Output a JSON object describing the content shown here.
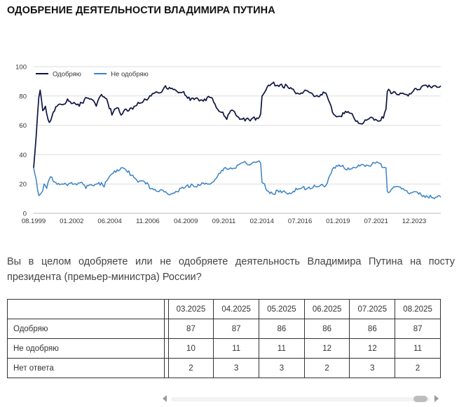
{
  "page": {
    "title": "ОДОБРЕНИЕ ДЕЯТЕЛЬНОСТИ ВЛАДИМИРА ПУТИНА",
    "question": "Вы в целом одобряете или не одобряете деятельность Владимира Путина на посту президента (премьер-министра) России?"
  },
  "chart_data": {
    "type": "line",
    "title": "",
    "xlabel": "",
    "ylabel": "",
    "ylim": [
      0,
      100
    ],
    "yticks": [
      0,
      20,
      40,
      60,
      80,
      100
    ],
    "xlim": [
      "1999-08",
      "2025-08"
    ],
    "xtick_labels": [
      "08.1999",
      "01.2002",
      "06.2004",
      "11.2006",
      "04.2009",
      "09.2011",
      "02.2014",
      "07.2016",
      "01.2019",
      "07.2021",
      "12.2023"
    ],
    "grid": true,
    "legend_position": "top-left",
    "series": [
      {
        "name": "Одобряю",
        "color": "#0d1440",
        "points": [
          [
            "1999-08",
            31
          ],
          [
            "1999-10",
            53
          ],
          [
            "1999-12",
            79
          ],
          [
            "2000-01",
            84
          ],
          [
            "2000-03",
            70
          ],
          [
            "2000-05",
            73
          ],
          [
            "2000-08",
            62
          ],
          [
            "2000-10",
            66
          ],
          [
            "2001-02",
            73
          ],
          [
            "2001-06",
            74
          ],
          [
            "2001-10",
            78
          ],
          [
            "2002-02",
            75
          ],
          [
            "2002-07",
            73
          ],
          [
            "2002-12",
            79
          ],
          [
            "2003-04",
            78
          ],
          [
            "2003-08",
            73
          ],
          [
            "2003-12",
            81
          ],
          [
            "2004-04",
            78
          ],
          [
            "2004-08",
            67
          ],
          [
            "2004-12",
            72
          ],
          [
            "2005-03",
            67
          ],
          [
            "2005-06",
            71
          ],
          [
            "2005-12",
            71
          ],
          [
            "2006-05",
            75
          ],
          [
            "2006-09",
            78
          ],
          [
            "2007-02",
            80
          ],
          [
            "2007-08",
            82
          ],
          [
            "2008-01",
            87
          ],
          [
            "2008-05",
            85
          ],
          [
            "2008-10",
            83
          ],
          [
            "2009-03",
            83
          ],
          [
            "2009-08",
            77
          ],
          [
            "2010-02",
            78
          ],
          [
            "2010-07",
            78
          ],
          [
            "2010-12",
            79
          ],
          [
            "2011-04",
            72
          ],
          [
            "2011-09",
            69
          ],
          [
            "2011-12",
            64
          ],
          [
            "2012-03",
            70
          ],
          [
            "2012-08",
            66
          ],
          [
            "2013-01",
            65
          ],
          [
            "2013-06",
            63
          ],
          [
            "2013-11",
            65
          ],
          [
            "2014-02",
            68
          ],
          [
            "2014-03",
            80
          ],
          [
            "2014-06",
            84
          ],
          [
            "2014-10",
            88
          ],
          [
            "2015-06",
            88
          ],
          [
            "2015-12",
            85
          ],
          [
            "2016-06",
            82
          ],
          [
            "2016-12",
            84
          ],
          [
            "2017-06",
            81
          ],
          [
            "2017-12",
            81
          ],
          [
            "2018-04",
            82
          ],
          [
            "2018-06",
            77
          ],
          [
            "2018-09",
            69
          ],
          [
            "2019-01",
            66
          ],
          [
            "2019-06",
            68
          ],
          [
            "2019-12",
            68
          ],
          [
            "2020-04",
            63
          ],
          [
            "2020-08",
            61
          ],
          [
            "2020-12",
            64
          ],
          [
            "2021-04",
            65
          ],
          [
            "2021-09",
            63
          ],
          [
            "2021-12",
            65
          ],
          [
            "2022-02",
            71
          ],
          [
            "2022-03",
            83
          ],
          [
            "2022-08",
            83
          ],
          [
            "2023-01",
            82
          ],
          [
            "2023-07",
            80
          ],
          [
            "2023-12",
            85
          ],
          [
            "2024-05",
            86
          ],
          [
            "2024-10",
            86
          ],
          [
            "2025-03",
            87
          ],
          [
            "2025-04",
            87
          ],
          [
            "2025-05",
            86
          ],
          [
            "2025-06",
            86
          ],
          [
            "2025-07",
            86
          ],
          [
            "2025-08",
            87
          ]
        ]
      },
      {
        "name": "Не одобряю",
        "color": "#3b82c4",
        "points": [
          [
            "1999-08",
            31
          ],
          [
            "1999-10",
            23
          ],
          [
            "1999-12",
            12
          ],
          [
            "2000-02",
            14
          ],
          [
            "2000-04",
            20
          ],
          [
            "2000-06",
            17
          ],
          [
            "2000-09",
            25
          ],
          [
            "2001-01",
            21
          ],
          [
            "2001-06",
            20
          ],
          [
            "2001-10",
            19
          ],
          [
            "2002-03",
            20
          ],
          [
            "2002-08",
            21
          ],
          [
            "2002-12",
            17
          ],
          [
            "2003-05",
            19
          ],
          [
            "2003-10",
            21
          ],
          [
            "2004-02",
            18
          ],
          [
            "2004-06",
            25
          ],
          [
            "2004-10",
            29
          ],
          [
            "2005-03",
            31
          ],
          [
            "2005-08",
            28
          ],
          [
            "2005-12",
            26
          ],
          [
            "2006-05",
            22
          ],
          [
            "2006-10",
            20
          ],
          [
            "2007-03",
            17
          ],
          [
            "2007-09",
            16
          ],
          [
            "2008-03",
            13
          ],
          [
            "2008-09",
            15
          ],
          [
            "2009-03",
            17
          ],
          [
            "2009-09",
            20
          ],
          [
            "2010-03",
            19
          ],
          [
            "2010-09",
            20
          ],
          [
            "2011-03",
            23
          ],
          [
            "2011-09",
            29
          ],
          [
            "2012-03",
            31
          ],
          [
            "2012-09",
            33
          ],
          [
            "2013-03",
            34
          ],
          [
            "2013-09",
            35
          ],
          [
            "2014-02",
            34
          ],
          [
            "2014-03",
            21
          ],
          [
            "2014-08",
            15
          ],
          [
            "2015-06",
            14
          ],
          [
            "2016-03",
            15
          ],
          [
            "2016-09",
            17
          ],
          [
            "2017-03",
            18
          ],
          [
            "2017-09",
            18
          ],
          [
            "2018-04",
            19
          ],
          [
            "2018-06",
            24
          ],
          [
            "2018-09",
            30
          ],
          [
            "2019-03",
            32
          ],
          [
            "2019-09",
            31
          ],
          [
            "2020-03",
            31
          ],
          [
            "2020-09",
            33
          ],
          [
            "2021-03",
            33
          ],
          [
            "2021-09",
            34
          ],
          [
            "2022-02",
            31
          ],
          [
            "2022-03",
            15
          ],
          [
            "2022-09",
            18
          ],
          [
            "2023-03",
            17
          ],
          [
            "2023-09",
            14
          ],
          [
            "2024-03",
            13
          ],
          [
            "2024-09",
            12
          ],
          [
            "2025-03",
            10
          ],
          [
            "2025-04",
            11
          ],
          [
            "2025-05",
            11
          ],
          [
            "2025-06",
            12
          ],
          [
            "2025-07",
            12
          ],
          [
            "2025-08",
            11
          ]
        ]
      }
    ]
  },
  "table": {
    "columns": [
      "03.2025",
      "04.2025",
      "05.2025",
      "06.2025",
      "07.2025",
      "08.2025"
    ],
    "rows": [
      {
        "label": "Одобряю",
        "values": [
          "87",
          "87",
          "86",
          "86",
          "86",
          "87"
        ]
      },
      {
        "label": "Не одобряю",
        "values": [
          "10",
          "11",
          "11",
          "12",
          "12",
          "11"
        ]
      },
      {
        "label": "Нет ответа",
        "values": [
          "2",
          "3",
          "3",
          "2",
          "3",
          "2"
        ]
      }
    ]
  },
  "scrollbar": {
    "left_icon": "chevron-left-icon",
    "right_icon": "chevron-right-icon",
    "position": 0.97
  }
}
